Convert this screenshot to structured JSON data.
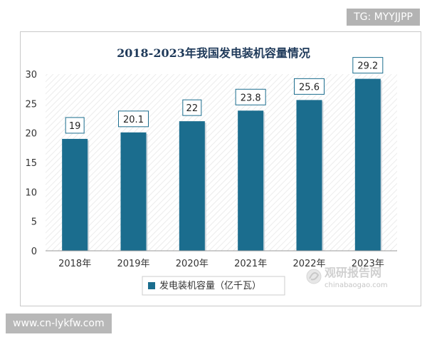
{
  "watermark": {
    "tg": "TG: MYYJJPP",
    "url": "www.cn-lykfw.com",
    "logo_cn": "观研报告网",
    "logo_en": "chinabaogao.com"
  },
  "colors": {
    "bar": "#1b6d8e",
    "label_border": "#1b6d8e",
    "axis": "#999999",
    "title": "#1f3a5a",
    "hatch": "#ececec"
  },
  "chart_data": {
    "type": "bar",
    "title": "2018-2023年我国发电装机容量情况",
    "categories": [
      "2018年",
      "2019年",
      "2020年",
      "2021年",
      "2022年",
      "2023年"
    ],
    "series": [
      {
        "name": "发电装机容量（亿千瓦）",
        "values": [
          19,
          20.1,
          22,
          23.8,
          25.6,
          29.2
        ]
      }
    ],
    "data_labels": [
      "19",
      "20.1",
      "22",
      "23.8",
      "25.6",
      "29.2"
    ],
    "yticks": [
      "0",
      "5",
      "10",
      "15",
      "20",
      "25",
      "30"
    ],
    "ylim": [
      0,
      30
    ],
    "grid": false,
    "legend_position": "bottom-left"
  }
}
